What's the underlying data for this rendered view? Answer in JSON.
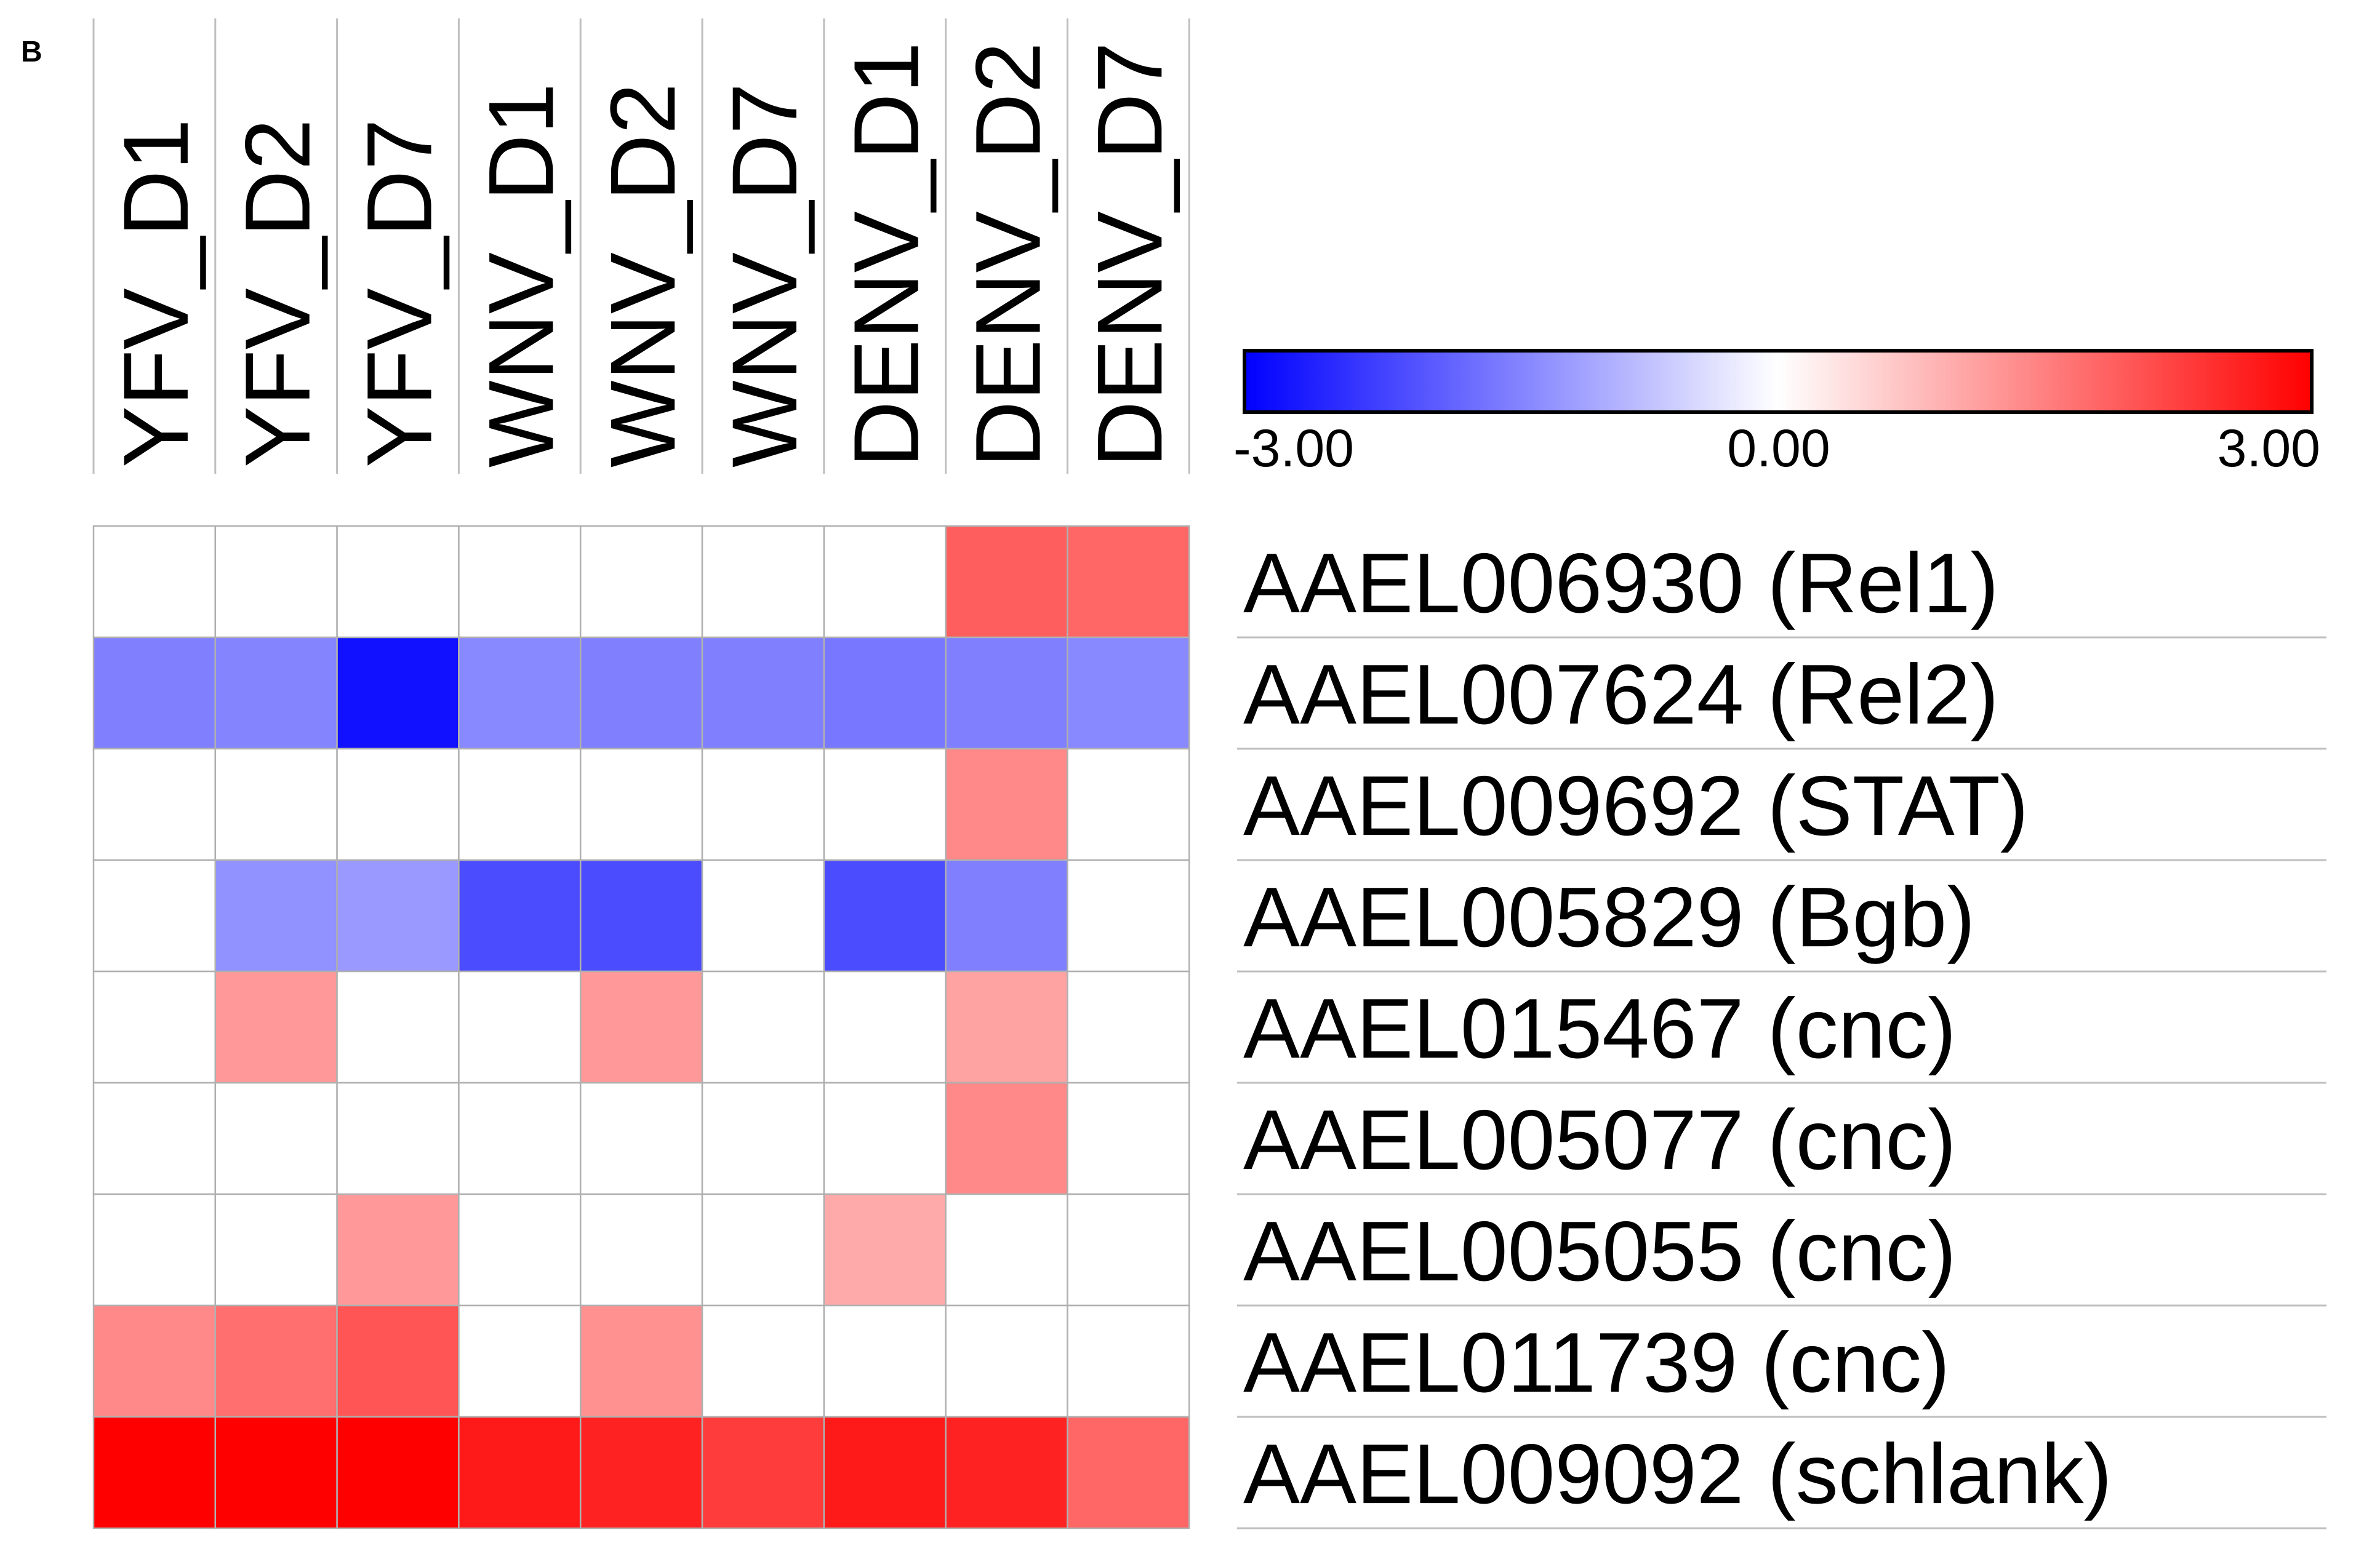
{
  "panel_label": "B",
  "chart_data": {
    "type": "heatmap",
    "columns": [
      "YFV_D1",
      "YFV_D2",
      "YFV_D7",
      "WNV_D1",
      "WNV_D2",
      "WNV_D7",
      "DENV_D1",
      "DENV_D2",
      "DENV_D7"
    ],
    "rows": [
      "AAEL006930 (Rel1)",
      "AAEL007624 (Rel2)",
      "AAEL009692 (STAT)",
      "AAEL005829 (Bgb)",
      "AAEL015467 (cnc)",
      "AAEL005077 (cnc)",
      "AAEL005055 (cnc)",
      "AAEL011739 (cnc)",
      "AAEL009092 (schlank)"
    ],
    "values": [
      [
        0,
        0,
        0,
        0,
        0,
        0,
        0,
        1.9,
        1.8
      ],
      [
        -1.5,
        -1.45,
        -2.8,
        -1.4,
        -1.5,
        -1.5,
        -1.6,
        -1.5,
        -1.4
      ],
      [
        0,
        0,
        0,
        0,
        0,
        0,
        0,
        1.4,
        0
      ],
      [
        0,
        -1.3,
        -1.2,
        -2.1,
        -2.1,
        0,
        -2.1,
        -1.5,
        0
      ],
      [
        0,
        1.2,
        0,
        0,
        1.2,
        0,
        0,
        1.1,
        0
      ],
      [
        0,
        0,
        0,
        0,
        0,
        0,
        0,
        1.4,
        0
      ],
      [
        0,
        0,
        1.2,
        0,
        0,
        0,
        1.0,
        0,
        0
      ],
      [
        1.4,
        1.7,
        2.0,
        0,
        1.3,
        0,
        0,
        0,
        0
      ],
      [
        3.0,
        3.0,
        3.0,
        2.7,
        2.6,
        2.3,
        2.7,
        2.6,
        1.8
      ]
    ],
    "color_scale": {
      "min": -3.0,
      "mid": 0.0,
      "max": 3.0,
      "min_color": "#0000ff",
      "mid_color": "#ffffff",
      "max_color": "#ff0000",
      "tick_labels": [
        "-3.00",
        "0.00",
        "3.00"
      ]
    }
  }
}
